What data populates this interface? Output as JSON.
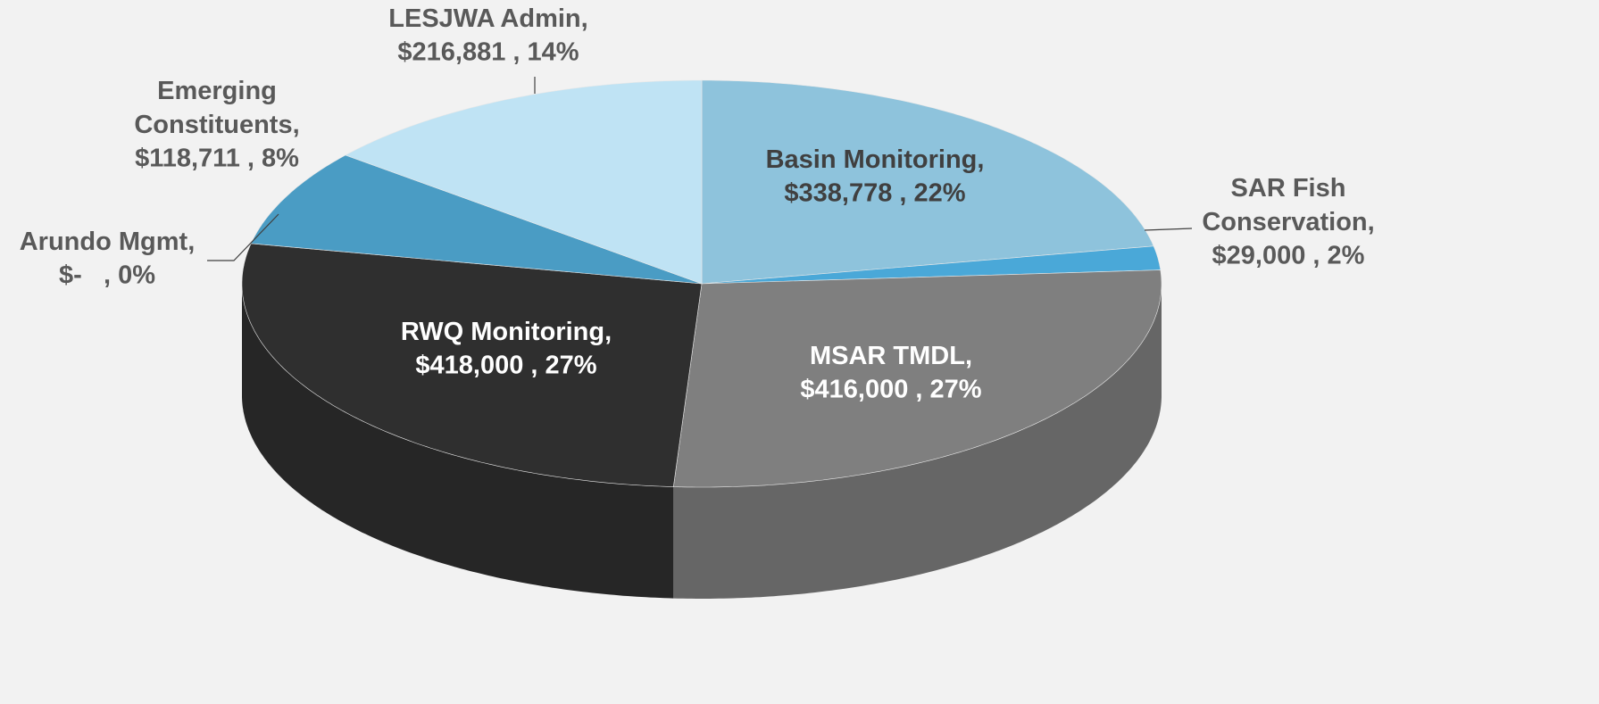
{
  "chart_data": {
    "type": "pie",
    "categories": [
      "Basin Monitoring,",
      "SAR Fish Conservation,",
      "MSAR TMDL,",
      "RWQ Monitoring,",
      "Arundo Mgmt,",
      "Emerging Constituents,",
      "LESJWA Admin,"
    ],
    "values": [
      338778,
      29000,
      416000,
      418000,
      0,
      118711,
      216881
    ],
    "value_labels": [
      "$338,778 , 22%",
      "$29,000 , 2%",
      "$416,000 , 27%",
      "$418,000 , 27%",
      "$-   , 0%",
      "$118,711 , 8%",
      "$216,881 , 14%"
    ],
    "colors": [
      "#8ec3dc",
      "#4aa8d8",
      "#7f7f7f",
      "#2f2f2f",
      "#3f8fbf",
      "#4a9cc4",
      "#bfe3f4"
    ]
  }
}
